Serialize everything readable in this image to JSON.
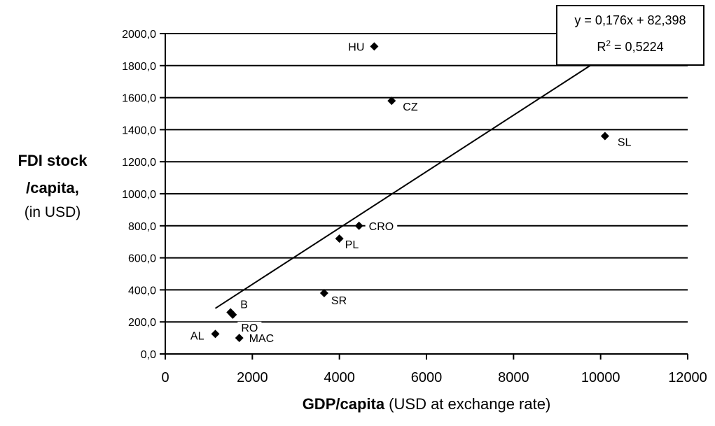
{
  "chart_data": {
    "type": "scatter",
    "title": "",
    "xlabel_bold": "GDP/capita",
    "xlabel_rest": " (USD at exchange rate)",
    "ylabel_lines": [
      "FDI stock",
      "/capita,"
    ],
    "ylabel_sub": "(in USD)",
    "xlim": [
      0,
      12000
    ],
    "ylim": [
      0,
      2000
    ],
    "xticks": [
      "0",
      "2000",
      "4000",
      "6000",
      "8000",
      "10000",
      "12000"
    ],
    "xtick_values": [
      0,
      2000,
      4000,
      6000,
      8000,
      10000,
      12000
    ],
    "yticks": [
      "0,0",
      "200,0",
      "400,0",
      "600,0",
      "800,0",
      "1000,0",
      "1200,0",
      "1400,0",
      "1600,0",
      "1800,0",
      "2000,0"
    ],
    "ytick_values": [
      0,
      200,
      400,
      600,
      800,
      1000,
      1200,
      1400,
      1600,
      1800,
      2000
    ],
    "grid": "horizontal",
    "points": [
      {
        "label": "HU",
        "x": 4800,
        "y": 1920
      },
      {
        "label": "CZ",
        "x": 5200,
        "y": 1580
      },
      {
        "label": "SL",
        "x": 10100,
        "y": 1360
      },
      {
        "label": "CRO",
        "x": 4450,
        "y": 800
      },
      {
        "label": "PL",
        "x": 4000,
        "y": 720
      },
      {
        "label": "SR",
        "x": 3650,
        "y": 380
      },
      {
        "label": "B",
        "x": 1500,
        "y": 260
      },
      {
        "label": "RO",
        "x": 1550,
        "y": 245
      },
      {
        "label": "AL",
        "x": 1150,
        "y": 125
      },
      {
        "label": "MAC",
        "x": 1700,
        "y": 100
      }
    ],
    "trendline": {
      "slope": 0.176,
      "intercept": 82.398,
      "x_range": [
        1150,
        10700
      ]
    },
    "equation_text": "y = 0,176x + 82,398",
    "r2_prefix": "R",
    "r2_sup": "2",
    "r2_suffix": " = 0,5224",
    "marker_color": "#000000",
    "line_color": "#000000"
  }
}
